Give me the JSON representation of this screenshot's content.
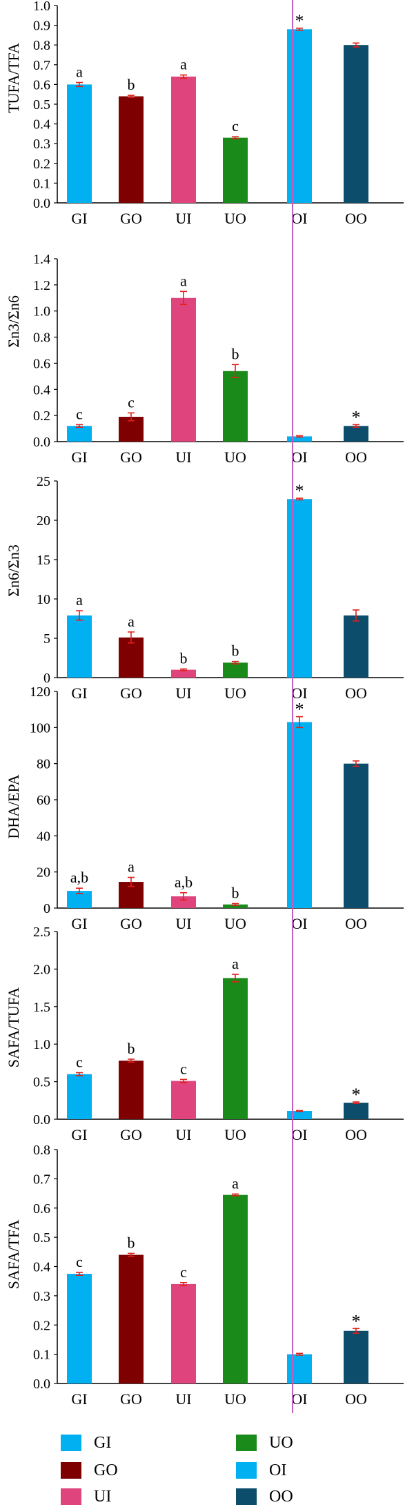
{
  "colors": {
    "GI": "#00b0f0",
    "GO": "#7f0000",
    "UI": "#e0447c",
    "UO": "#1a8a1a",
    "OI": "#00b0f0",
    "OO": "#0c4d6b",
    "error_bar": "#e0201a",
    "divider": "#c060c0",
    "axis": "#000000"
  },
  "chart_data": [
    {
      "type": "bar",
      "ylabel": "TUFA/TFA",
      "categories": [
        "GI",
        "GO",
        "UI",
        "UO",
        "OI",
        "OO"
      ],
      "values": [
        0.6,
        0.54,
        0.64,
        0.33,
        0.88,
        0.8
      ],
      "errors": [
        0.01,
        0.005,
        0.008,
        0.005,
        0.005,
        0.01
      ],
      "annotations": [
        "a",
        "b",
        "a",
        "c",
        "*",
        ""
      ],
      "ylim": [
        0,
        1.0
      ],
      "yticks": [
        "0.0",
        "0.1",
        "0.2",
        "0.3",
        "0.4",
        "0.5",
        "0.6",
        "0.7",
        "0.8",
        "0.9",
        "1.0"
      ]
    },
    {
      "type": "bar",
      "ylabel": "Σn3/Σn6",
      "categories": [
        "GI",
        "GO",
        "UI",
        "UO",
        "OI",
        "OO"
      ],
      "values": [
        0.12,
        0.19,
        1.1,
        0.54,
        0.04,
        0.12
      ],
      "errors": [
        0.01,
        0.03,
        0.05,
        0.05,
        0.005,
        0.01
      ],
      "annotations": [
        "c",
        "c",
        "a",
        "b",
        "",
        "*"
      ],
      "ylim": [
        0,
        1.4
      ],
      "yticks": [
        "0.0",
        "0.2",
        "0.4",
        "0.6",
        "0.8",
        "1.0",
        "1.2",
        "1.4"
      ]
    },
    {
      "type": "bar",
      "ylabel": "Σn6/Σn3",
      "categories": [
        "GI",
        "GO",
        "UI",
        "UO",
        "OI",
        "OO"
      ],
      "values": [
        7.9,
        5.1,
        1.0,
        1.9,
        22.7,
        7.9
      ],
      "errors": [
        0.6,
        0.7,
        0.1,
        0.15,
        0.1,
        0.7
      ],
      "annotations": [
        "a",
        "a",
        "b",
        "b",
        "*",
        ""
      ],
      "ylim": [
        0,
        25
      ],
      "yticks": [
        "0",
        "5",
        "10",
        "15",
        "20",
        "25"
      ]
    },
    {
      "type": "bar",
      "ylabel": "DHA/EPA",
      "categories": [
        "GI",
        "GO",
        "UI",
        "UO",
        "OI",
        "OO"
      ],
      "values": [
        9.5,
        14.5,
        6.5,
        2.0,
        103,
        80
      ],
      "errors": [
        1.5,
        2.5,
        2.0,
        0.5,
        3.0,
        1.5
      ],
      "annotations": [
        "a,b",
        "a",
        "a,b",
        "b",
        "*",
        ""
      ],
      "ylim": [
        0,
        120
      ],
      "yticks": [
        "0",
        "20",
        "40",
        "60",
        "80",
        "100",
        "120"
      ]
    },
    {
      "type": "bar",
      "ylabel": "SAFA/TUFA",
      "categories": [
        "GI",
        "GO",
        "UI",
        "UO",
        "OI",
        "OO"
      ],
      "values": [
        0.6,
        0.78,
        0.51,
        1.88,
        0.11,
        0.22
      ],
      "errors": [
        0.02,
        0.02,
        0.02,
        0.05,
        0.005,
        0.01
      ],
      "annotations": [
        "c",
        "b",
        "c",
        "a",
        "",
        "*"
      ],
      "ylim": [
        0,
        2.5
      ],
      "yticks": [
        "0.0",
        "0.5",
        "1.0",
        "1.5",
        "2.0",
        "2.5"
      ]
    },
    {
      "type": "bar",
      "ylabel": "SAFA/TFA",
      "categories": [
        "GI",
        "GO",
        "UI",
        "UO",
        "OI",
        "OO"
      ],
      "values": [
        0.375,
        0.44,
        0.34,
        0.645,
        0.1,
        0.18
      ],
      "errors": [
        0.005,
        0.005,
        0.005,
        0.003,
        0.003,
        0.008
      ],
      "annotations": [
        "c",
        "b",
        "c",
        "a",
        "",
        "*"
      ],
      "ylim": [
        0,
        0.8
      ],
      "yticks": [
        "0.0",
        "0.1",
        "0.2",
        "0.3",
        "0.4",
        "0.5",
        "0.6",
        "0.7",
        "0.8"
      ]
    }
  ],
  "legend": [
    {
      "label": "GI",
      "color": "#00b0f0"
    },
    {
      "label": "UO",
      "color": "#1a8a1a"
    },
    {
      "label": "GO",
      "color": "#7f0000"
    },
    {
      "label": "OI",
      "color": "#00b0f0"
    },
    {
      "label": "UI",
      "color": "#e0447c"
    },
    {
      "label": "OO",
      "color": "#0c4d6b"
    }
  ]
}
